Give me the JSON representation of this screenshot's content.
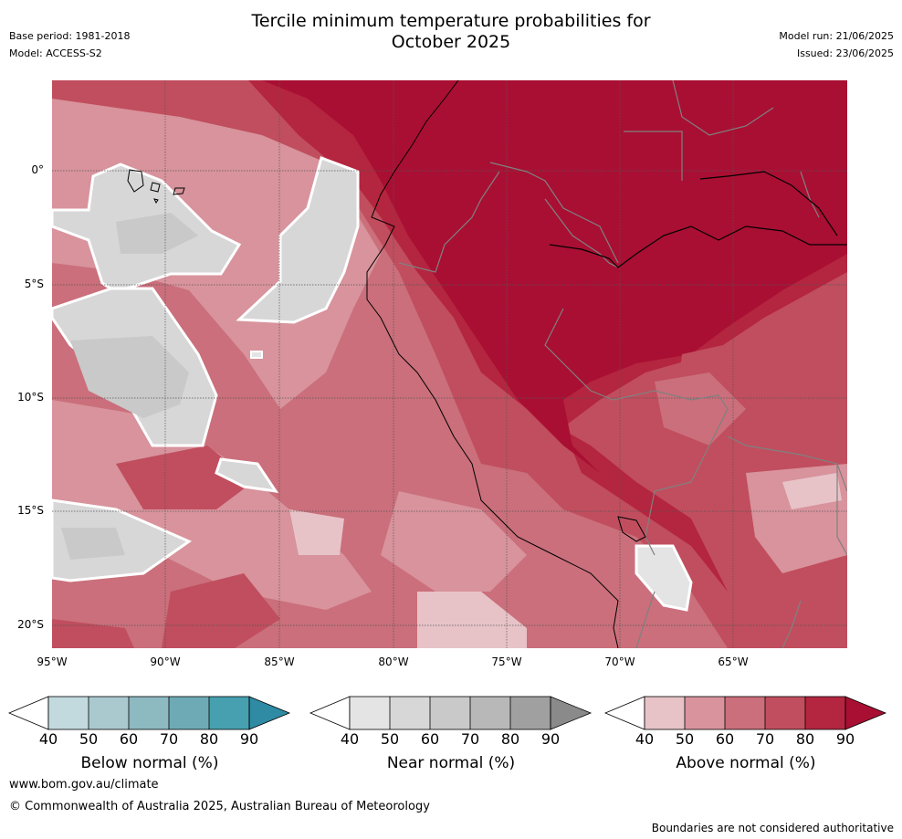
{
  "header": {
    "title_line1": "Tercile minimum temperature probabilities for",
    "title_line2": "October 2025",
    "base_period": "Base period: 1981-2018",
    "model": "Model: ACCESS-S2",
    "model_run": "Model run: 21/06/2025",
    "issued": "Issued: 23/06/2025"
  },
  "map": {
    "lat_labels": [
      "0°",
      "5°S",
      "10°S",
      "15°S",
      "20°S"
    ],
    "lon_labels": [
      "95°W",
      "90°W",
      "85°W",
      "80°W",
      "75°W",
      "70°W",
      "65°W"
    ],
    "colors": {
      "above_40": "#e7c3c8",
      "above_50": "#d8939c",
      "above_60": "#ca6f7b",
      "above_70": "#c04e5e",
      "above_80": "#b4253f",
      "above_90": "#a90f33",
      "near_40": "#e4e4e4",
      "near_50": "#d7d7d7",
      "near_60": "#c9c9c9",
      "near_70": "#b8b8b8",
      "near_80": "#a0a0a0",
      "near_90": "#8a8a8a",
      "below_40": "#c2d9de",
      "below_50": "#a9c9cf",
      "below_60": "#8db9c1",
      "below_70": "#6eaab5",
      "below_80": "#46a0b0",
      "below_90": "#2e8ba3"
    }
  },
  "colorbars": [
    {
      "name": "Below normal (%)",
      "ticks": [
        "40",
        "50",
        "60",
        "70",
        "80",
        "90"
      ]
    },
    {
      "name": "Near normal (%)",
      "ticks": [
        "40",
        "50",
        "60",
        "70",
        "80",
        "90"
      ]
    },
    {
      "name": "Above normal (%)",
      "ticks": [
        "40",
        "50",
        "60",
        "70",
        "80",
        "90"
      ]
    }
  ],
  "footer": {
    "url": "www.bom.gov.au/climate",
    "copyright": "© Commonwealth of Australia 2025, Australian Bureau of Meteorology",
    "disclaimer": "Boundaries are not considered authoritative"
  }
}
